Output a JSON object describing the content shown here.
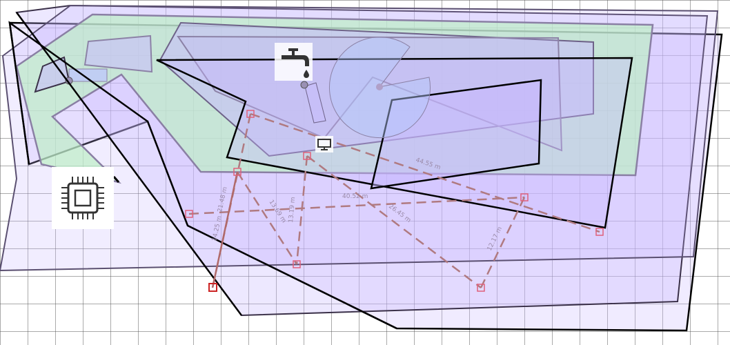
{
  "colors": {
    "grid": "#444444",
    "polygon_fill": "#c8b8ff",
    "green_fill": "#bdeec6",
    "measure_line": "#b07a80",
    "marker": "#e0607a",
    "marker_strong": "#cc2222"
  },
  "icons": [
    "faucet-icon",
    "monitor-icon",
    "cpu-chip-icon"
  ],
  "measurements": [
    {
      "name": "measure-44-55",
      "label": "44.55 m"
    },
    {
      "name": "measure-40-52",
      "label": "40.52 m"
    },
    {
      "name": "measure-26-45",
      "label": "26.45 m"
    },
    {
      "name": "measure-21-48",
      "label": "21.48 m"
    },
    {
      "name": "measure-13-69",
      "label": "13.69 m"
    },
    {
      "name": "measure-13-19",
      "label": "13.19 m"
    },
    {
      "name": "measure-12-17",
      "label": "12.17 m"
    },
    {
      "name": "measure-14-25",
      "label": "14.25 m"
    }
  ]
}
